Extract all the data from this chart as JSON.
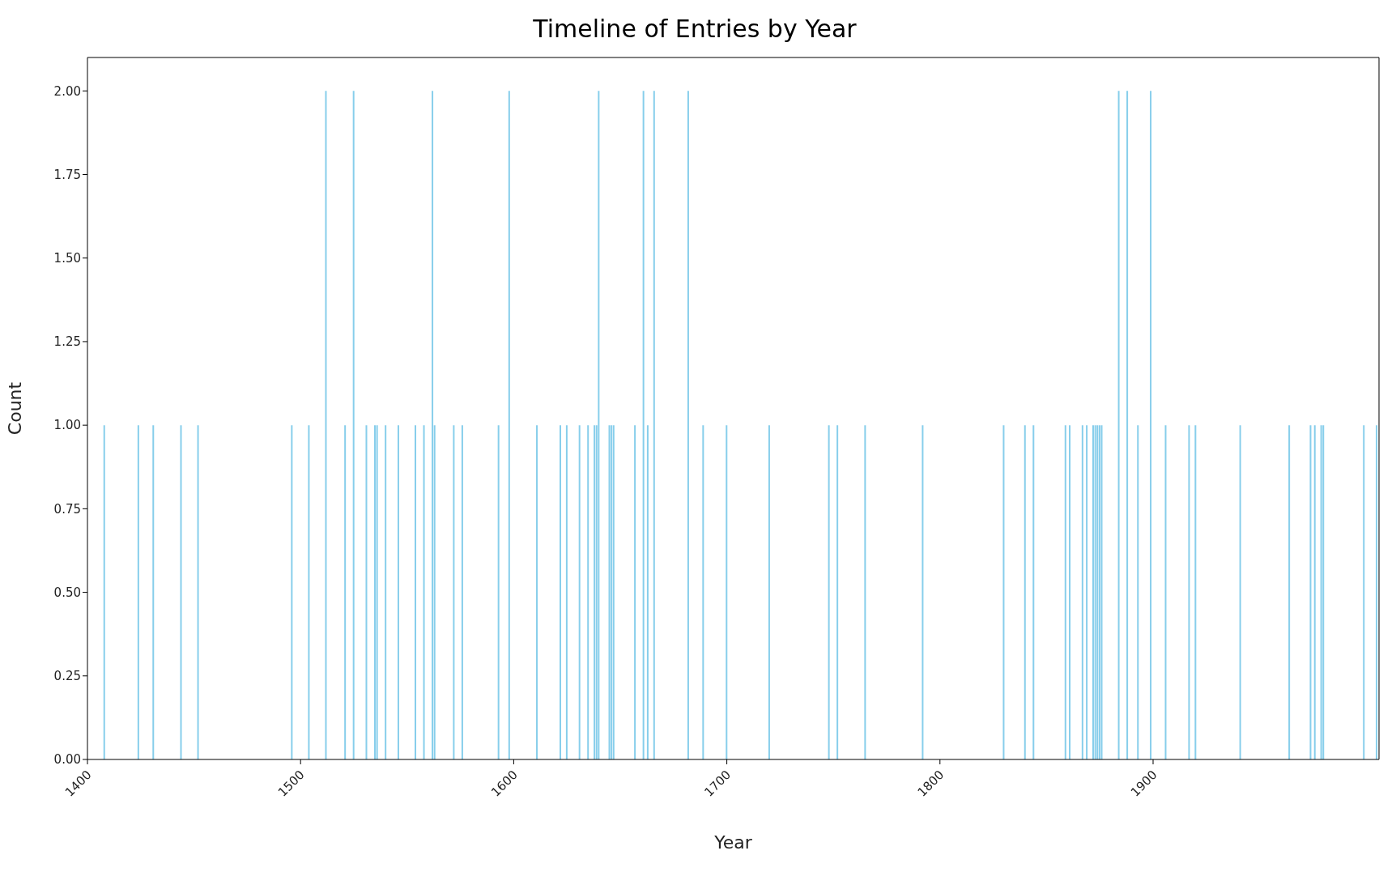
{
  "chart_data": {
    "type": "bar",
    "title": "Timeline of Entries by Year",
    "xlabel": "Year",
    "ylabel": "Count",
    "color": "#87ceeb",
    "x": [
      1408,
      1424,
      1431,
      1444,
      1452,
      1496,
      1504,
      1512,
      1521,
      1525,
      1531,
      1535,
      1536,
      1540,
      1546,
      1554,
      1558,
      1562,
      1563,
      1572,
      1576,
      1593,
      1598,
      1611,
      1622,
      1625,
      1631,
      1635,
      1638,
      1639,
      1640,
      1645,
      1646,
      1647,
      1657,
      1661,
      1663,
      1666,
      1682,
      1689,
      1700,
      1720,
      1748,
      1752,
      1765,
      1792,
      1830,
      1840,
      1844,
      1859,
      1861,
      1867,
      1869,
      1872,
      1873,
      1874,
      1875,
      1876,
      1884,
      1888,
      1893,
      1899,
      1906,
      1917,
      1920,
      1941,
      1964,
      1974,
      1976,
      1979,
      1980,
      1999,
      2005
    ],
    "values": [
      1,
      1,
      1,
      1,
      1,
      1,
      1,
      2,
      1,
      2,
      1,
      1,
      1,
      1,
      1,
      1,
      1,
      2,
      1,
      1,
      1,
      1,
      2,
      1,
      1,
      1,
      1,
      1,
      1,
      1,
      2,
      1,
      1,
      1,
      1,
      2,
      1,
      2,
      2,
      1,
      1,
      1,
      1,
      1,
      1,
      1,
      1,
      1,
      1,
      1,
      1,
      1,
      1,
      1,
      1,
      1,
      1,
      1,
      2,
      2,
      1,
      2,
      1,
      1,
      1,
      1,
      1,
      1,
      1,
      1,
      1,
      1,
      1
    ],
    "xlim": [
      1400,
      2006
    ],
    "xticks": [
      1400,
      1500,
      1600,
      1700,
      1800,
      1900
    ],
    "ylim": [
      0,
      2.1
    ],
    "yticks": [
      {
        "value": 0,
        "label": "0.00"
      },
      {
        "value": 0.25,
        "label": "0.25"
      },
      {
        "value": 0.5,
        "label": "0.50"
      },
      {
        "value": 0.75,
        "label": "0.75"
      },
      {
        "value": 1,
        "label": "1.00"
      },
      {
        "value": 1.25,
        "label": "1.25"
      },
      {
        "value": 1.5,
        "label": "1.50"
      },
      {
        "value": 1.75,
        "label": "1.75"
      },
      {
        "value": 2,
        "label": "2.00"
      }
    ],
    "grid": false,
    "legend": false
  }
}
